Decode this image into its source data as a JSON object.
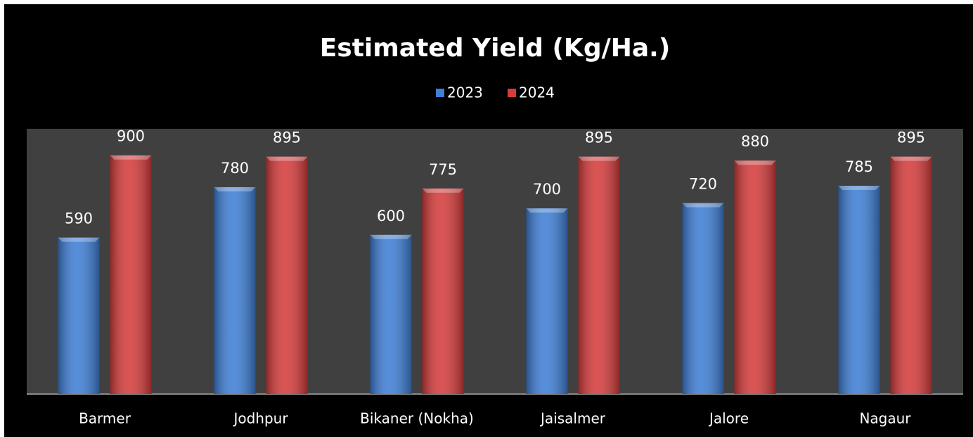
{
  "chart_data": {
    "type": "bar",
    "title": "Estimated Yield (Kg/Ha.)",
    "categories": [
      "Barmer",
      "Jodhpur",
      "Bikaner (Nokha)",
      "Jaisalmer",
      "Jalore",
      "Nagaur"
    ],
    "series": [
      {
        "name": "2023",
        "color": "#3f7fd6",
        "values": [
          590,
          780,
          600,
          700,
          720,
          785
        ]
      },
      {
        "name": "2024",
        "color": "#d63c3c",
        "values": [
          900,
          895,
          775,
          895,
          880,
          895
        ]
      }
    ],
    "ylim": [
      0,
      1000
    ],
    "legend": "top"
  }
}
